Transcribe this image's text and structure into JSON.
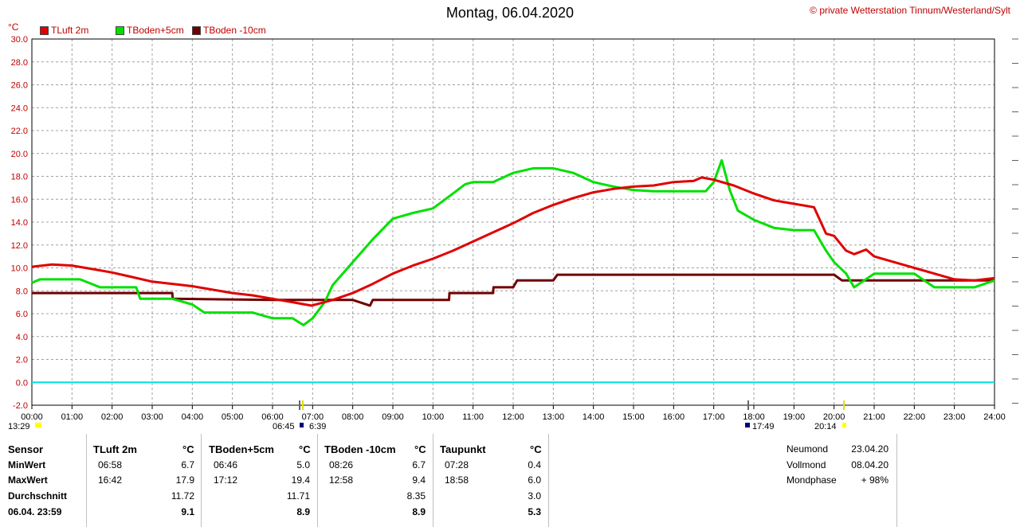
{
  "title": "Montag, 06.04.2020",
  "credit": "© private Wetterstation Tinnum/Westerland/Sylt",
  "unit": "°C",
  "legend": [
    {
      "label": "TLuft 2m",
      "color": "#e00000"
    },
    {
      "label": "TBoden+5cm",
      "color": "#00e000"
    },
    {
      "label": "TBoden -10cm",
      "color": "#700000"
    }
  ],
  "sun_labels": {
    "sunrise": "6:39",
    "sunset": "20:14",
    "moonrise": "06:45",
    "moonset": "17:49",
    "prev": "13:29"
  },
  "chart_data": {
    "type": "line",
    "title": "Montag, 06.04.2020",
    "ylabel": "°C",
    "ylim": [
      -2,
      30
    ],
    "xlim": [
      0,
      24
    ],
    "yticks": [
      "30.0",
      "28.0",
      "26.0",
      "24.0",
      "22.0",
      "20.0",
      "18.0",
      "16.0",
      "14.0",
      "12.0",
      "10.0",
      "8.0",
      "6.0",
      "4.0",
      "2.0",
      "0.0",
      "-2.0"
    ],
    "xticks": [
      "00:00",
      "01:00",
      "02:00",
      "03:00",
      "04:00",
      "05:00",
      "06:00",
      "07:00",
      "08:00",
      "09:00",
      "10:00",
      "11:00",
      "12:00",
      "13:00",
      "14:00",
      "15:00",
      "16:00",
      "17:00",
      "18:00",
      "19:00",
      "20:00",
      "21:00",
      "22:00",
      "23:00",
      "24:00"
    ],
    "reference_line": {
      "y": 0,
      "color": "#00e0e0"
    },
    "grid": true,
    "series": [
      {
        "name": "TLuft 2m",
        "color": "#e00000",
        "x": [
          0,
          0.5,
          1,
          1.5,
          2,
          2.5,
          3,
          3.5,
          4,
          4.5,
          5,
          5.5,
          6,
          6.5,
          6.97,
          7.5,
          8,
          8.5,
          9,
          9.5,
          10,
          10.5,
          11,
          11.5,
          12,
          12.5,
          13,
          13.5,
          14,
          14.5,
          15,
          15.5,
          16,
          16.5,
          16.7,
          17,
          17.5,
          18,
          18.5,
          19,
          19.5,
          19.8,
          20,
          20.3,
          20.5,
          20.8,
          21,
          21.5,
          22,
          22.5,
          23,
          23.5,
          24
        ],
        "y": [
          10.1,
          10.3,
          10.2,
          9.9,
          9.6,
          9.2,
          8.8,
          8.6,
          8.4,
          8.1,
          7.8,
          7.6,
          7.3,
          7.0,
          6.7,
          7.2,
          7.8,
          8.6,
          9.5,
          10.2,
          10.8,
          11.5,
          12.3,
          13.1,
          13.9,
          14.8,
          15.5,
          16.1,
          16.6,
          16.9,
          17.1,
          17.2,
          17.5,
          17.6,
          17.9,
          17.7,
          17.2,
          16.5,
          15.9,
          15.6,
          15.3,
          13.0,
          12.8,
          11.5,
          11.2,
          11.6,
          11.0,
          10.5,
          10.0,
          9.5,
          9.0,
          8.9,
          9.1
        ]
      },
      {
        "name": "TBoden+5cm",
        "color": "#00e000",
        "x": [
          0,
          0.2,
          1.2,
          1.7,
          2.6,
          2.7,
          3.5,
          4,
          4.3,
          5,
          5.5,
          6,
          6.5,
          6.77,
          7,
          7.3,
          7.5,
          8,
          8.5,
          9,
          9.5,
          10,
          10.5,
          10.8,
          11,
          11.5,
          12,
          12.5,
          13,
          13.5,
          14,
          14.5,
          15,
          15.5,
          16,
          16.5,
          16.8,
          17.0,
          17.2,
          17.4,
          17.6,
          18,
          18.5,
          19,
          19.5,
          19.8,
          20,
          20.3,
          20.5,
          21,
          21.5,
          22,
          22.5,
          23,
          23.5,
          24
        ],
        "y": [
          8.7,
          9.0,
          9.0,
          8.3,
          8.3,
          7.3,
          7.3,
          6.8,
          6.1,
          6.1,
          6.1,
          5.6,
          5.6,
          5.0,
          5.6,
          7.0,
          8.5,
          10.5,
          12.5,
          14.3,
          14.8,
          15.2,
          16.5,
          17.3,
          17.5,
          17.5,
          18.3,
          18.7,
          18.7,
          18.3,
          17.5,
          17.1,
          16.8,
          16.7,
          16.7,
          16.7,
          16.7,
          17.5,
          19.4,
          16.8,
          15.0,
          14.2,
          13.5,
          13.3,
          13.3,
          11.5,
          10.5,
          9.5,
          8.3,
          9.5,
          9.5,
          9.5,
          8.3,
          8.3,
          8.3,
          8.9
        ]
      },
      {
        "name": "TBoden -10cm",
        "color": "#700000",
        "x": [
          0,
          2,
          3.5,
          3.51,
          6,
          8,
          8.43,
          8.5,
          10,
          10.4,
          10.41,
          11.5,
          11.51,
          12,
          12.1,
          13,
          13.1,
          18,
          19,
          20,
          20.2,
          21,
          22,
          23,
          24
        ],
        "y": [
          7.8,
          7.8,
          7.8,
          7.3,
          7.2,
          7.2,
          6.7,
          7.2,
          7.2,
          7.2,
          7.8,
          7.8,
          8.3,
          8.3,
          8.9,
          8.9,
          9.4,
          9.4,
          9.4,
          9.4,
          8.9,
          8.9,
          8.9,
          8.9,
          8.9
        ]
      }
    ]
  },
  "stats": {
    "label_col": [
      "Sensor",
      "MinWert",
      "MaxWert",
      "Durchschnitt",
      "06.04. 23:59"
    ],
    "groups": [
      {
        "name": "TLuft 2m",
        "unit": "°C",
        "min_time": "06:58",
        "min_val": "6.7",
        "max_time": "16:42",
        "max_val": "17.9",
        "avg": "11.72",
        "last": "9.1"
      },
      {
        "name": "TBoden+5cm",
        "unit": "°C",
        "min_time": "06:46",
        "min_val": "5.0",
        "max_time": "17:12",
        "max_val": "19.4",
        "avg": "11.71",
        "last": "8.9"
      },
      {
        "name": "TBoden -10cm",
        "unit": "°C",
        "min_time": "08:26",
        "min_val": "6.7",
        "max_time": "12:58",
        "max_val": "9.4",
        "avg": "8.35",
        "last": "8.9"
      },
      {
        "name": "Taupunkt",
        "unit": "°C",
        "min_time": "07:28",
        "min_val": "0.4",
        "max_time": "18:58",
        "max_val": "6.0",
        "avg": "3.0",
        "last": "5.3"
      }
    ],
    "moon": [
      {
        "label": "Neumond",
        "value": "23.04.20"
      },
      {
        "label": "Vollmond",
        "value": "08.04.20"
      },
      {
        "label": "Mondphase",
        "value": "+ 98%"
      }
    ]
  }
}
